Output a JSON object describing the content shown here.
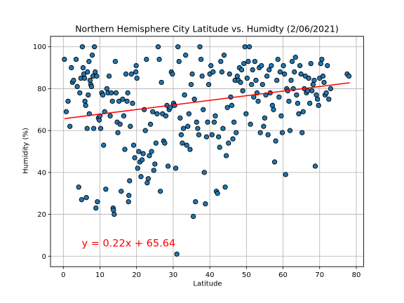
{
  "chart_data": {
    "type": "scatter",
    "title": "Northern Hemisphere City Latitude vs. Humidty (2/06/2021)",
    "xlabel": "Latitude",
    "ylabel": "Humidity (%)",
    "xlim": [
      -3.5,
      82
    ],
    "ylim": [
      -5,
      105
    ],
    "xticks": [
      0,
      10,
      20,
      30,
      40,
      50,
      60,
      70,
      80
    ],
    "yticks": [
      0,
      20,
      40,
      60,
      80,
      100
    ],
    "grid": true,
    "marker_color": "#1f77b4",
    "marker_edge": "#000000",
    "regression": {
      "slope": 0.22,
      "intercept": 65.64,
      "x_range": [
        0.3,
        78.2
      ],
      "label": "y = 0.22x + 65.64",
      "color": "#ff0000"
    },
    "points": [
      [
        0.3,
        94
      ],
      [
        0.8,
        69
      ],
      [
        1.3,
        74
      ],
      [
        1.8,
        62
      ],
      [
        2.2,
        90
      ],
      [
        2.5,
        83
      ],
      [
        2.8,
        84
      ],
      [
        3.5,
        94
      ],
      [
        3.8,
        81
      ],
      [
        4.2,
        33
      ],
      [
        4.5,
        78
      ],
      [
        4.8,
        85
      ],
      [
        5.0,
        27
      ],
      [
        5.2,
        100
      ],
      [
        5.4,
        90
      ],
      [
        5.6,
        87
      ],
      [
        5.8,
        85
      ],
      [
        5.9,
        74
      ],
      [
        6.1,
        72
      ],
      [
        6.3,
        28
      ],
      [
        6.5,
        61
      ],
      [
        6.6,
        88
      ],
      [
        6.8,
        77
      ],
      [
        7.0,
        93
      ],
      [
        7.1,
        68
      ],
      [
        7.3,
        84
      ],
      [
        7.5,
        82
      ],
      [
        7.7,
        81
      ],
      [
        7.9,
        96
      ],
      [
        8.1,
        86
      ],
      [
        8.3,
        61
      ],
      [
        8.5,
        100
      ],
      [
        8.7,
        88
      ],
      [
        8.9,
        23
      ],
      [
        9.1,
        86
      ],
      [
        9.3,
        26
      ],
      [
        9.6,
        66
      ],
      [
        9.8,
        65
      ],
      [
        10.0,
        67
      ],
      [
        10.2,
        61
      ],
      [
        10.5,
        78
      ],
      [
        10.8,
        77
      ],
      [
        11.0,
        53
      ],
      [
        11.3,
        69
      ],
      [
        11.6,
        32
      ],
      [
        11.9,
        80
      ],
      [
        12.2,
        78
      ],
      [
        12.5,
        86
      ],
      [
        12.8,
        67
      ],
      [
        13.1,
        78
      ],
      [
        13.4,
        74
      ],
      [
        13.6,
        23
      ],
      [
        13.7,
        22
      ],
      [
        13.9,
        20
      ],
      [
        14.2,
        93
      ],
      [
        14.4,
        78
      ],
      [
        14.7,
        64
      ],
      [
        14.9,
        59
      ],
      [
        15.2,
        74
      ],
      [
        15.5,
        63
      ],
      [
        15.8,
        31
      ],
      [
        16.2,
        75
      ],
      [
        16.5,
        67
      ],
      [
        16.8,
        51
      ],
      [
        17.1,
        87
      ],
      [
        17.4,
        74
      ],
      [
        17.6,
        78
      ],
      [
        17.8,
        26
      ],
      [
        17.9,
        29
      ],
      [
        18.1,
        36
      ],
      [
        18.3,
        62
      ],
      [
        18.6,
        87
      ],
      [
        18.9,
        73
      ],
      [
        19.2,
        53
      ],
      [
        19.5,
        47
      ],
      [
        19.8,
        88
      ],
      [
        19.9,
        91
      ],
      [
        20.1,
        85
      ],
      [
        20.3,
        42
      ],
      [
        20.6,
        50
      ],
      [
        20.9,
        45
      ],
      [
        21.2,
        38
      ],
      [
        21.5,
        46
      ],
      [
        21.8,
        49
      ],
      [
        22.1,
        70
      ],
      [
        22.4,
        60
      ],
      [
        22.7,
        94
      ],
      [
        22.9,
        35
      ],
      [
        23.2,
        37
      ],
      [
        23.5,
        48
      ],
      [
        23.8,
        63
      ],
      [
        24.1,
        50
      ],
      [
        24.4,
        69
      ],
      [
        24.7,
        41
      ],
      [
        25.0,
        44
      ],
      [
        25.3,
        54
      ],
      [
        25.6,
        68
      ],
      [
        25.9,
        100
      ],
      [
        26.2,
        94
      ],
      [
        26.5,
        31
      ],
      [
        26.8,
        83
      ],
      [
        27.1,
        68
      ],
      [
        27.4,
        55
      ],
      [
        27.7,
        54
      ],
      [
        28.0,
        67
      ],
      [
        28.3,
        72
      ],
      [
        28.6,
        43
      ],
      [
        28.9,
        70
      ],
      [
        29.2,
        71
      ],
      [
        29.5,
        88
      ],
      [
        29.8,
        87
      ],
      [
        30.1,
        73
      ],
      [
        30.4,
        72
      ],
      [
        30.7,
        42
      ],
      [
        31.0,
        1
      ],
      [
        31.3,
        100
      ],
      [
        31.6,
        93
      ],
      [
        31.9,
        66
      ],
      [
        32.2,
        58
      ],
      [
        32.5,
        54
      ],
      [
        32.8,
        61
      ],
      [
        33.1,
        77
      ],
      [
        33.4,
        96
      ],
      [
        33.7,
        53
      ],
      [
        34.0,
        62
      ],
      [
        34.3,
        68
      ],
      [
        34.6,
        51
      ],
      [
        34.9,
        82
      ],
      [
        35.2,
        87
      ],
      [
        35.5,
        19
      ],
      [
        35.8,
        75
      ],
      [
        36.1,
        26
      ],
      [
        36.4,
        64
      ],
      [
        36.7,
        61
      ],
      [
        37.0,
        58
      ],
      [
        37.3,
        100
      ],
      [
        37.6,
        94
      ],
      [
        37.9,
        86
      ],
      [
        38.2,
        70
      ],
      [
        38.5,
        40
      ],
      [
        38.8,
        25
      ],
      [
        39.1,
        57
      ],
      [
        39.4,
        64
      ],
      [
        39.7,
        82
      ],
      [
        40.0,
        87
      ],
      [
        40.3,
        91
      ],
      [
        40.6,
        58
      ],
      [
        40.9,
        88
      ],
      [
        41.2,
        64
      ],
      [
        41.5,
        67
      ],
      [
        41.8,
        31
      ],
      [
        42.1,
        30
      ],
      [
        42.4,
        57
      ],
      [
        42.7,
        52
      ],
      [
        43.0,
        93
      ],
      [
        43.3,
        88
      ],
      [
        43.6,
        61
      ],
      [
        43.9,
        96
      ],
      [
        44.2,
        33
      ],
      [
        44.5,
        48
      ],
      [
        44.8,
        71
      ],
      [
        45.1,
        54
      ],
      [
        45.4,
        87
      ],
      [
        45.7,
        76
      ],
      [
        46.0,
        72
      ],
      [
        46.3,
        56
      ],
      [
        46.6,
        64
      ],
      [
        46.9,
        84
      ],
      [
        47.2,
        59
      ],
      [
        47.5,
        86
      ],
      [
        47.8,
        84
      ],
      [
        48.1,
        90
      ],
      [
        48.4,
        83
      ],
      [
        48.7,
        89
      ],
      [
        49.0,
        79
      ],
      [
        49.3,
        92
      ],
      [
        49.6,
        100
      ],
      [
        49.9,
        68
      ],
      [
        50.2,
        85
      ],
      [
        50.5,
        93
      ],
      [
        50.8,
        100
      ],
      [
        51.1,
        63
      ],
      [
        51.4,
        82
      ],
      [
        51.7,
        89
      ],
      [
        52.0,
        76
      ],
      [
        52.3,
        93
      ],
      [
        52.6,
        84
      ],
      [
        52.9,
        78
      ],
      [
        53.2,
        74
      ],
      [
        53.5,
        90
      ],
      [
        53.8,
        59
      ],
      [
        54.1,
        91
      ],
      [
        54.4,
        82
      ],
      [
        54.7,
        62
      ],
      [
        55.0,
        66
      ],
      [
        55.3,
        77
      ],
      [
        55.6,
        86
      ],
      [
        55.9,
        58
      ],
      [
        56.2,
        89
      ],
      [
        56.5,
        78
      ],
      [
        56.8,
        91
      ],
      [
        57.1,
        72
      ],
      [
        57.4,
        70
      ],
      [
        57.7,
        45
      ],
      [
        58.0,
        55
      ],
      [
        58.3,
        84
      ],
      [
        58.6,
        94
      ],
      [
        58.9,
        76
      ],
      [
        59.2,
        88
      ],
      [
        59.5,
        67
      ],
      [
        59.8,
        59
      ],
      [
        60.1,
        91
      ],
      [
        60.4,
        87
      ],
      [
        60.7,
        39
      ],
      [
        61.0,
        80
      ],
      [
        61.3,
        79
      ],
      [
        61.6,
        74
      ],
      [
        61.9,
        60
      ],
      [
        62.2,
        84
      ],
      [
        62.5,
        93
      ],
      [
        62.8,
        80
      ],
      [
        63.1,
        88
      ],
      [
        63.4,
        95
      ],
      [
        63.7,
        77
      ],
      [
        64.0,
        73
      ],
      [
        64.3,
        68
      ],
      [
        64.6,
        91
      ],
      [
        64.9,
        87
      ],
      [
        65.2,
        59
      ],
      [
        65.5,
        69
      ],
      [
        65.8,
        80
      ],
      [
        66.1,
        86
      ],
      [
        66.4,
        78
      ],
      [
        66.7,
        79
      ],
      [
        67.0,
        85
      ],
      [
        67.3,
        73
      ],
      [
        67.6,
        92
      ],
      [
        67.9,
        79
      ],
      [
        68.2,
        82
      ],
      [
        68.5,
        84
      ],
      [
        68.8,
        43
      ],
      [
        69.1,
        77
      ],
      [
        69.4,
        75
      ],
      [
        69.7,
        72
      ],
      [
        70.0,
        85
      ],
      [
        70.3,
        92
      ],
      [
        70.6,
        94
      ],
      [
        70.9,
        86
      ],
      [
        71.2,
        83
      ],
      [
        71.5,
        77
      ],
      [
        71.8,
        78
      ],
      [
        72.1,
        91
      ],
      [
        72.5,
        75
      ],
      [
        73.0,
        80
      ],
      [
        77.5,
        87
      ],
      [
        78.0,
        86
      ]
    ]
  }
}
